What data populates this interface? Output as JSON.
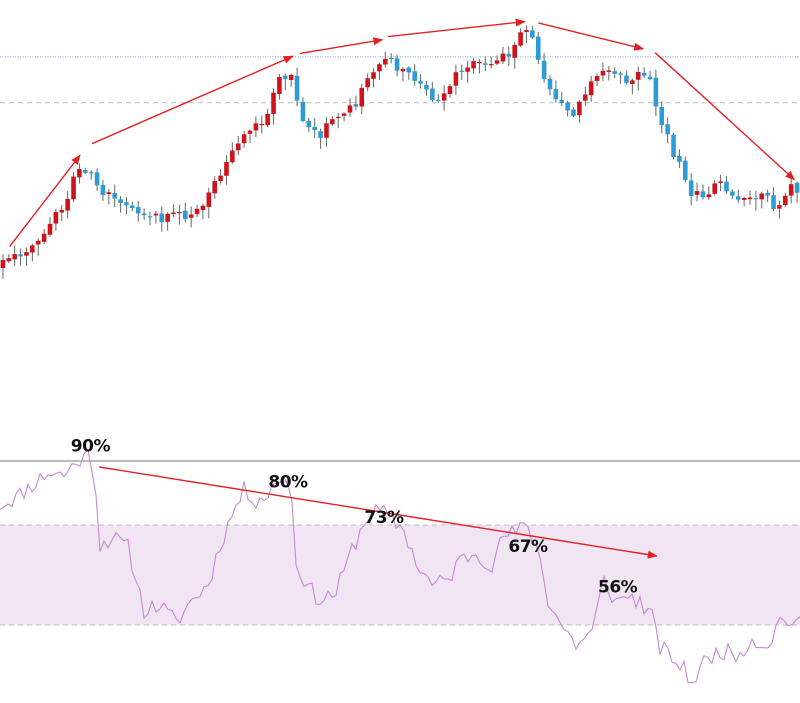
{
  "colors": {
    "bull": "#d0131b",
    "bear": "#2e9ad6",
    "wick": "#5d6b62",
    "trend": "#e32025",
    "rsi_line": "#c68ad6",
    "rsi_band": "#f1e4f3",
    "blue_level": "#7fa1ef",
    "dash": "#bdbdbd",
    "separator": "#7a7a7a"
  },
  "chart_data": [
    {
      "type": "candlestick",
      "title": "",
      "xlabel": "",
      "ylabel": "",
      "ylim": [
        0,
        100
      ],
      "grid": false,
      "x_range": [
        0,
        100
      ],
      "horizontal_levels": [
        {
          "style": "dotted-blue",
          "y": 86.6
        },
        {
          "style": "dashed-gray",
          "y": 73.5
        }
      ],
      "trend_lines": [
        {
          "x1": 1.2,
          "y1": 32.4,
          "x2": 10.0,
          "y2": 58.5
        },
        {
          "x1": 11.5,
          "y1": 61.8,
          "x2": 36.6,
          "y2": 86.8
        },
        {
          "x1": 37.5,
          "y1": 87.6,
          "x2": 47.8,
          "y2": 91.5
        },
        {
          "x1": 48.5,
          "y1": 92.4,
          "x2": 65.6,
          "y2": 96.7
        },
        {
          "x1": 67.3,
          "y1": 96.3,
          "x2": 80.4,
          "y2": 88.9
        },
        {
          "x1": 81.9,
          "y1": 87.8,
          "x2": 99.3,
          "y2": 51.5
        }
      ],
      "anchors": [
        [
          0,
          26.5
        ],
        [
          3,
          29.5
        ],
        [
          6,
          36.5
        ],
        [
          8,
          43
        ],
        [
          10,
          53
        ],
        [
          11.5,
          54
        ],
        [
          13,
          46
        ],
        [
          15,
          47
        ],
        [
          17.5,
          43
        ],
        [
          19.5,
          41
        ],
        [
          22,
          40.5
        ],
        [
          25,
          43
        ],
        [
          27.5,
          52
        ],
        [
          29.5,
          61.5
        ],
        [
          31.5,
          66
        ],
        [
          33.5,
          69
        ],
        [
          35.5,
          80.5
        ],
        [
          36.8,
          82
        ],
        [
          38,
          67.5
        ],
        [
          40,
          64
        ],
        [
          42,
          68.5
        ],
        [
          44,
          71
        ],
        [
          46,
          78
        ],
        [
          47.5,
          84.5
        ],
        [
          49,
          86
        ],
        [
          51,
          82
        ],
        [
          53,
          80
        ],
        [
          54.8,
          73.5
        ],
        [
          56.5,
          78
        ],
        [
          58,
          83.5
        ],
        [
          60,
          86
        ],
        [
          62,
          84
        ],
        [
          64,
          87.5
        ],
        [
          65.5,
          94.5
        ],
        [
          67,
          93
        ],
        [
          68,
          80
        ],
        [
          70,
          74
        ],
        [
          72,
          70
        ],
        [
          74,
          79
        ],
        [
          75.5,
          84
        ],
        [
          77,
          82
        ],
        [
          79,
          80
        ],
        [
          80.5,
          84
        ],
        [
          81.8,
          78
        ],
        [
          83,
          67
        ],
        [
          85,
          57
        ],
        [
          86.5,
          48.5
        ],
        [
          88,
          46
        ],
        [
          90,
          50
        ],
        [
          92,
          47.5
        ],
        [
          94,
          45
        ],
        [
          96,
          47
        ],
        [
          97.5,
          43.5
        ],
        [
          98.5,
          48.5
        ],
        [
          100,
          49
        ]
      ],
      "bar_count": 136,
      "seed": 7
    },
    {
      "type": "line",
      "title": "",
      "xlabel": "",
      "ylabel": "",
      "ylim": [
        0,
        100
      ],
      "x_range": [
        0,
        100
      ],
      "band": [
        30,
        70
      ],
      "anchors": [
        [
          0,
          78
        ],
        [
          2,
          81
        ],
        [
          4,
          86
        ],
        [
          6,
          91
        ],
        [
          8,
          90
        ],
        [
          9.5,
          95
        ],
        [
          11,
          98
        ],
        [
          11.8,
          92
        ],
        [
          12.5,
          62
        ],
        [
          14,
          65
        ],
        [
          16,
          61
        ],
        [
          18,
          36
        ],
        [
          20,
          38
        ],
        [
          22,
          31
        ],
        [
          24,
          40
        ],
        [
          26,
          46
        ],
        [
          27.5,
          62
        ],
        [
          29,
          74
        ],
        [
          30.5,
          84
        ],
        [
          32,
          80
        ],
        [
          33.5,
          82
        ],
        [
          35,
          89
        ],
        [
          36.3,
          88
        ],
        [
          37,
          55
        ],
        [
          38.5,
          45
        ],
        [
          40,
          40
        ],
        [
          42,
          43
        ],
        [
          44,
          60
        ],
        [
          46,
          74
        ],
        [
          47.5,
          76
        ],
        [
          49,
          72
        ],
        [
          50.5,
          68
        ],
        [
          52,
          55
        ],
        [
          54,
          46
        ],
        [
          56,
          48
        ],
        [
          57.5,
          56
        ],
        [
          59.5,
          59
        ],
        [
          61.5,
          54
        ],
        [
          63,
          66
        ],
        [
          64.5,
          67
        ],
        [
          66,
          70
        ],
        [
          67.5,
          57
        ],
        [
          68.5,
          40
        ],
        [
          70,
          31
        ],
        [
          72,
          22
        ],
        [
          74,
          27
        ],
        [
          75.5,
          48
        ],
        [
          77,
          39
        ],
        [
          78.5,
          42
        ],
        [
          80,
          39
        ],
        [
          81.5,
          33
        ],
        [
          82.5,
          21
        ],
        [
          84,
          17
        ],
        [
          85.5,
          12
        ],
        [
          86.5,
          7
        ],
        [
          88,
          15
        ],
        [
          90,
          20
        ],
        [
          92,
          18
        ],
        [
          94,
          24
        ],
        [
          96,
          22
        ],
        [
          97.5,
          32
        ],
        [
          98.5,
          32
        ],
        [
          100,
          30
        ]
      ],
      "point_count": 200,
      "seed": 11,
      "divergence_line": {
        "x1": 12.4,
        "y1": 93.2,
        "x2": 82.1,
        "y2": 57.6
      },
      "annotations": [
        {
          "label": "90%",
          "x": 11.3,
          "y": 99.5
        },
        {
          "label": "80%",
          "x": 36.0,
          "y": 85.0
        },
        {
          "label": "73%",
          "x": 48.0,
          "y": 70.8
        },
        {
          "label": "67%",
          "x": 66.0,
          "y": 59.2
        },
        {
          "label": "56%",
          "x": 77.2,
          "y": 43.0
        }
      ]
    }
  ]
}
